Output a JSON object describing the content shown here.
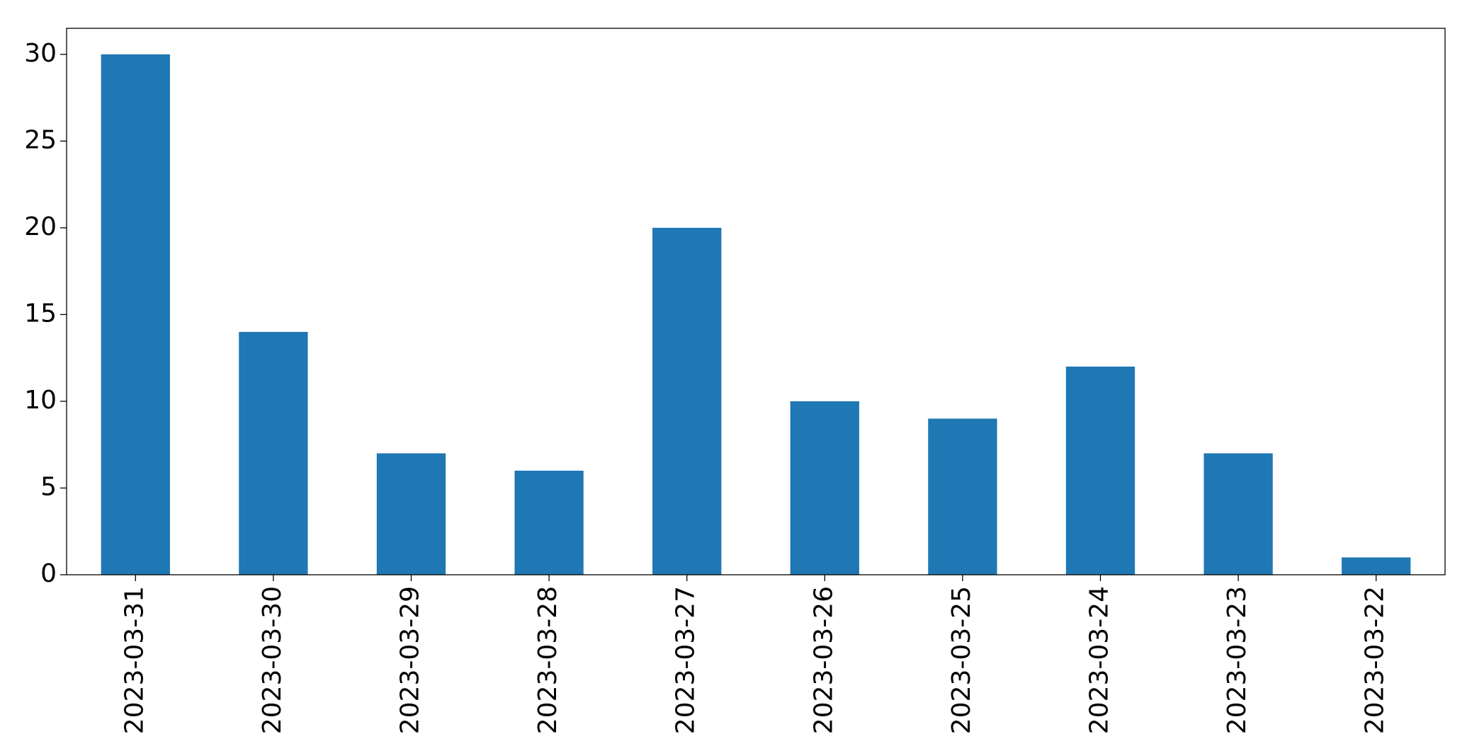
{
  "chart_data": {
    "type": "bar",
    "categories": [
      "2023-03-31",
      "2023-03-30",
      "2023-03-29",
      "2023-03-28",
      "2023-03-27",
      "2023-03-26",
      "2023-03-25",
      "2023-03-24",
      "2023-03-23",
      "2023-03-22"
    ],
    "values": [
      30,
      14,
      7,
      6,
      20,
      10,
      9,
      12,
      7,
      1
    ],
    "color": "#1f77b4",
    "ylim": [
      0,
      31.5
    ],
    "yticks": [
      0,
      5,
      10,
      15,
      20,
      25,
      30
    ],
    "grid": false
  }
}
